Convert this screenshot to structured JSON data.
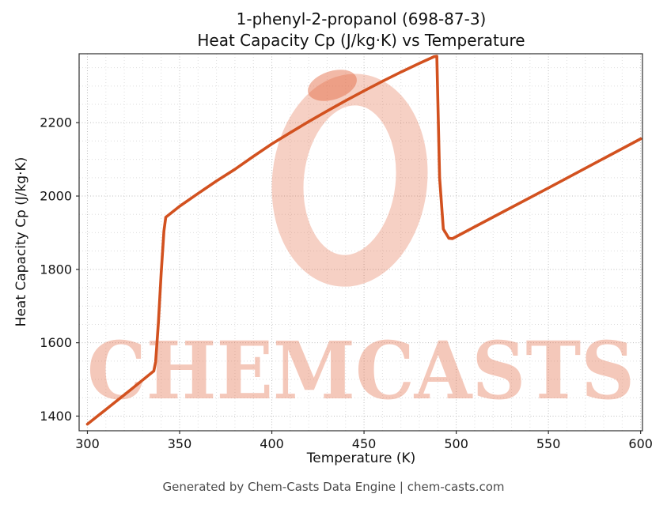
{
  "header": {
    "title_line1": "1-phenyl-2-propanol (698-87-3)",
    "title_line2": "Heat Capacity Cp (J/kg·K) vs Temperature"
  },
  "footer": {
    "text": "Generated by Chem-Casts Data Engine | chem-casts.com"
  },
  "watermark": {
    "text": "CHEMCASTS",
    "color": "#e2643c"
  },
  "chart_data": {
    "type": "line",
    "title": "1-phenyl-2-propanol (698-87-3) Heat Capacity Cp (J/kg·K) vs Temperature",
    "xlabel": "Temperature (K)",
    "ylabel": "Heat Capacity Cp (J/kg·K)",
    "xlim": [
      295.5,
      601
    ],
    "ylim": [
      1360,
      2388
    ],
    "x_ticks": [
      300,
      350,
      400,
      450,
      500,
      550,
      600
    ],
    "y_ticks": [
      1400,
      1600,
      1800,
      2000,
      2200
    ],
    "grid": "both",
    "legend": "none",
    "line_color": "#d2511f",
    "series": [
      {
        "name": "Heat Capacity Cp",
        "points": [
          [
            300,
            1378
          ],
          [
            312,
            1426
          ],
          [
            324,
            1474
          ],
          [
            336,
            1523
          ],
          [
            337,
            1548
          ],
          [
            338.5,
            1655
          ],
          [
            340,
            1790
          ],
          [
            341.5,
            1905
          ],
          [
            342.5,
            1942
          ],
          [
            350,
            1972
          ],
          [
            360,
            2007
          ],
          [
            370,
            2041
          ],
          [
            380,
            2073
          ],
          [
            390,
            2108
          ],
          [
            400,
            2142
          ],
          [
            410,
            2173
          ],
          [
            420,
            2203
          ],
          [
            430,
            2232
          ],
          [
            440,
            2260
          ],
          [
            450,
            2287
          ],
          [
            460,
            2313
          ],
          [
            470,
            2338
          ],
          [
            480,
            2362
          ],
          [
            488,
            2380
          ],
          [
            489.5,
            2381
          ],
          [
            491,
            2050
          ],
          [
            493,
            1910
          ],
          [
            496,
            1885
          ],
          [
            498,
            1884
          ],
          [
            510,
            1916
          ],
          [
            525,
            1956
          ],
          [
            550,
            2022
          ],
          [
            575,
            2089
          ],
          [
            600,
            2156
          ]
        ]
      }
    ]
  }
}
